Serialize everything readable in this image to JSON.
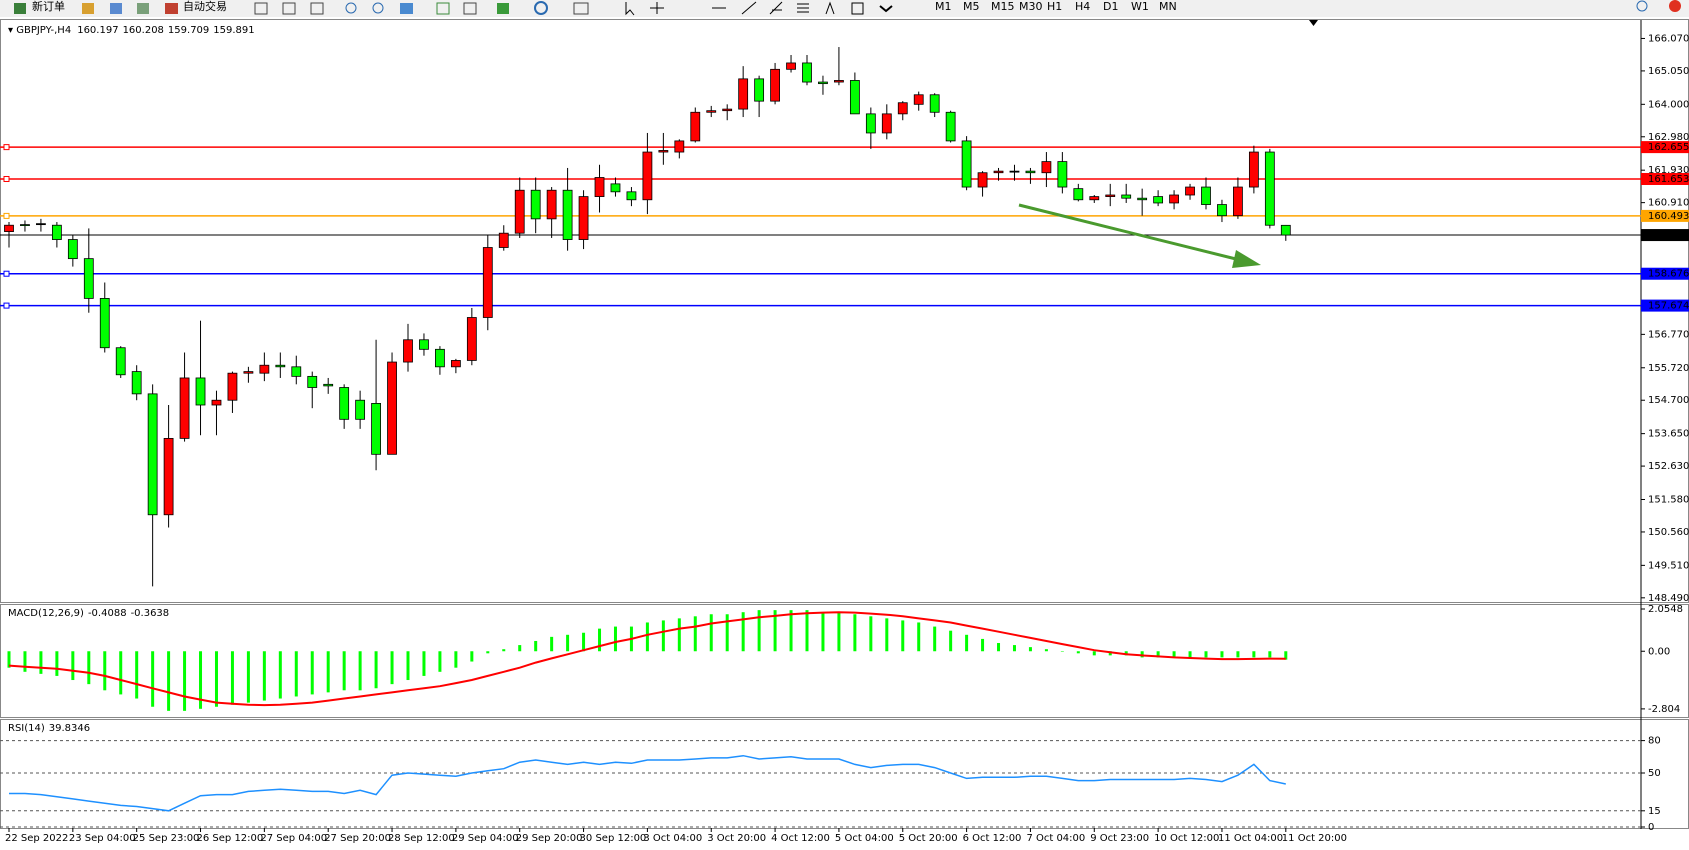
{
  "toolbar": {
    "new_order": "新订单",
    "auto_trading": "自动交易",
    "timeframes": [
      "M1",
      "M5",
      "M15",
      "M30",
      "H1",
      "H4",
      "D1",
      "W1",
      "MN"
    ]
  },
  "chart_data": [
    {
      "type": "candlestick",
      "symbol": "GBPJPY-,H4",
      "up_color": "#ff0000",
      "down_color": "#00ff00",
      "categories": [
        "22 Sep 2022",
        null,
        null,
        null,
        "23 Sep 04:00",
        null,
        null,
        null,
        "25 Sep 23:00",
        null,
        null,
        null,
        "26 Sep 12:00",
        null,
        null,
        null,
        "27 Sep 04:00",
        null,
        null,
        null,
        "27 Sep 20:00",
        null,
        null,
        null,
        "28 Sep 12:00",
        null,
        null,
        null,
        "29 Sep 04:00",
        null,
        null,
        null,
        "29 Sep 20:00",
        null,
        null,
        null,
        "30 Sep 12:00",
        null,
        null,
        null,
        "3 Oct 04:00",
        null,
        null,
        null,
        "3 Oct 20:00",
        null,
        null,
        null,
        "4 Oct 12:00",
        null,
        null,
        null,
        "5 Oct 04:00",
        null,
        null,
        null,
        "5 Oct 20:00",
        null,
        null,
        null,
        "6 Oct 12:00",
        null,
        null,
        null,
        "7 Oct 04:00",
        null,
        null,
        null,
        "9 Oct 23:00",
        null,
        null,
        null,
        "10 Oct 12:00",
        null,
        null,
        null,
        "11 Oct 04:00",
        null,
        null,
        null,
        "11 Oct 20:00"
      ],
      "open": [
        160.0,
        160.22,
        160.25,
        160.2,
        159.75,
        159.15,
        157.9,
        156.35,
        155.6,
        154.9,
        151.1,
        153.5,
        155.4,
        154.55,
        154.7,
        155.55,
        155.55,
        155.8,
        155.75,
        155.45,
        155.2,
        155.1,
        154.7,
        154.6,
        153.0,
        155.9,
        156.6,
        156.3,
        155.75,
        155.95,
        157.3,
        159.5,
        159.95,
        161.3,
        160.4,
        161.3,
        159.75,
        161.1,
        161.5,
        161.25,
        161.0,
        162.5,
        162.5,
        162.85,
        163.75,
        163.8,
        163.85,
        164.8,
        164.1,
        165.1,
        165.3,
        164.7,
        164.7,
        164.75,
        163.7,
        163.1,
        163.7,
        164.0,
        164.3,
        163.75,
        162.85,
        161.4,
        161.85,
        161.9,
        161.9,
        161.85,
        162.2,
        161.35,
        161.0,
        161.1,
        161.15,
        161.05,
        161.1,
        160.9,
        161.15,
        161.4,
        160.85,
        160.5,
        161.4,
        162.5,
        160.197
      ],
      "high": [
        160.3,
        160.35,
        160.4,
        160.3,
        159.9,
        160.1,
        158.4,
        156.4,
        155.8,
        155.2,
        154.55,
        156.2,
        157.2,
        155.0,
        155.6,
        155.75,
        156.2,
        156.2,
        156.1,
        155.6,
        155.4,
        155.2,
        155.0,
        156.6,
        156.2,
        157.1,
        156.8,
        156.4,
        156.0,
        157.6,
        159.9,
        160.2,
        161.7,
        161.7,
        161.4,
        162.0,
        161.3,
        162.1,
        161.7,
        161.4,
        163.1,
        163.1,
        162.9,
        163.9,
        163.95,
        164.0,
        165.2,
        164.9,
        165.3,
        165.55,
        165.55,
        164.9,
        165.8,
        165.0,
        163.9,
        164.0,
        164.1,
        164.4,
        164.35,
        163.8,
        163.0,
        161.9,
        162.0,
        162.1,
        162.0,
        162.5,
        162.5,
        161.5,
        161.15,
        161.5,
        161.5,
        161.35,
        161.3,
        161.3,
        161.5,
        161.7,
        161.0,
        161.7,
        162.7,
        162.6,
        160.208
      ],
      "low": [
        159.5,
        160.0,
        160.0,
        159.5,
        158.9,
        157.45,
        156.2,
        155.4,
        154.7,
        148.85,
        150.7,
        153.4,
        153.6,
        153.6,
        154.3,
        155.25,
        155.3,
        155.4,
        155.2,
        154.45,
        154.9,
        153.8,
        153.8,
        152.5,
        153.0,
        155.6,
        156.1,
        155.5,
        155.55,
        155.8,
        156.9,
        159.4,
        159.8,
        159.95,
        159.8,
        159.4,
        159.45,
        160.6,
        161.1,
        160.8,
        160.55,
        162.1,
        162.3,
        162.8,
        163.6,
        163.5,
        163.6,
        163.6,
        164.0,
        165.0,
        164.6,
        164.3,
        164.6,
        163.7,
        162.6,
        162.9,
        163.5,
        163.8,
        163.6,
        162.8,
        161.3,
        161.1,
        161.6,
        161.6,
        161.5,
        161.4,
        161.2,
        160.95,
        160.9,
        160.8,
        160.9,
        160.5,
        160.8,
        160.7,
        161.0,
        160.7,
        160.3,
        160.4,
        161.2,
        160.1,
        159.709
      ],
      "close": [
        160.2,
        160.2,
        160.25,
        159.75,
        159.15,
        157.9,
        156.35,
        155.5,
        154.9,
        151.1,
        153.5,
        155.4,
        154.55,
        154.7,
        155.55,
        155.6,
        155.8,
        155.75,
        155.45,
        155.1,
        155.15,
        154.1,
        154.1,
        153.0,
        155.9,
        156.6,
        156.3,
        155.75,
        155.95,
        157.3,
        159.5,
        159.95,
        161.3,
        160.4,
        161.3,
        159.75,
        161.1,
        161.7,
        161.25,
        161.0,
        162.5,
        162.55,
        162.85,
        163.75,
        163.8,
        163.85,
        164.8,
        164.1,
        165.1,
        165.3,
        164.7,
        164.65,
        164.75,
        163.7,
        163.1,
        163.7,
        164.05,
        164.3,
        163.75,
        162.85,
        161.4,
        161.85,
        161.9,
        161.9,
        161.85,
        162.2,
        161.4,
        161.0,
        161.1,
        161.15,
        161.05,
        161.0,
        160.9,
        161.15,
        161.4,
        160.85,
        160.5,
        161.4,
        162.5,
        160.2,
        159.891
      ],
      "ylim": [
        148.39,
        166.65
      ],
      "yticks": [
        {
          "value": 166.07,
          "label": "166.070"
        },
        {
          "value": 165.05,
          "label": "165.050"
        },
        {
          "value": 164.0,
          "label": "164.000"
        },
        {
          "value": 162.98,
          "label": "162.980"
        },
        {
          "value": 161.93,
          "label": "161.930"
        },
        {
          "value": 160.91,
          "label": "160.910"
        },
        {
          "value": 156.77,
          "label": "156.770"
        },
        {
          "value": 155.72,
          "label": "155.720"
        },
        {
          "value": 154.7,
          "label": "154.700"
        },
        {
          "value": 153.65,
          "label": "153.650"
        },
        {
          "value": 152.63,
          "label": "152.630"
        },
        {
          "value": 151.58,
          "label": "151.580"
        },
        {
          "value": 150.56,
          "label": "150.560"
        },
        {
          "value": 149.51,
          "label": "149.510"
        },
        {
          "value": 148.49,
          "label": "148.490"
        }
      ],
      "levels": [
        {
          "value": 162.655,
          "color": "#ff0000"
        },
        {
          "value": 161.653,
          "color": "#ff0000"
        },
        {
          "value": 160.493,
          "color": "#ffa500"
        },
        {
          "value": 158.676,
          "color": "#0000ff"
        },
        {
          "value": 157.674,
          "color": "#0000ff"
        }
      ]
    },
    {
      "type": "bar",
      "title": "MACD(12,26,9)",
      "color": "#00ff00",
      "values": [
        -0.8,
        -1.0,
        -1.1,
        -1.2,
        -1.4,
        -1.6,
        -1.9,
        -2.1,
        -2.3,
        -2.7,
        -2.9,
        -2.9,
        -2.8,
        -2.7,
        -2.6,
        -2.5,
        -2.4,
        -2.3,
        -2.2,
        -2.1,
        -2.0,
        -1.9,
        -1.9,
        -1.8,
        -1.6,
        -1.4,
        -1.2,
        -1.0,
        -0.8,
        -0.5,
        -0.1,
        0.1,
        0.3,
        0.5,
        0.7,
        0.8,
        0.9,
        1.1,
        1.2,
        1.2,
        1.4,
        1.5,
        1.6,
        1.7,
        1.8,
        1.8,
        1.9,
        2.0,
        2.0,
        2.0,
        2.0,
        1.9,
        1.9,
        1.8,
        1.7,
        1.6,
        1.5,
        1.4,
        1.2,
        1.0,
        0.8,
        0.6,
        0.4,
        0.3,
        0.2,
        0.1,
        0.0,
        -0.1,
        -0.2,
        -0.2,
        -0.2,
        -0.3,
        -0.3,
        -0.3,
        -0.3,
        -0.3,
        -0.3,
        -0.3,
        -0.3,
        -0.3,
        -0.4088
      ],
      "line": {
        "color": "#ff0000",
        "values": [
          -0.7,
          -0.75,
          -0.8,
          -0.85,
          -0.95,
          -1.05,
          -1.2,
          -1.4,
          -1.6,
          -1.8,
          -2.0,
          -2.2,
          -2.35,
          -2.5,
          -2.55,
          -2.6,
          -2.62,
          -2.6,
          -2.55,
          -2.5,
          -2.4,
          -2.3,
          -2.2,
          -2.1,
          -2.0,
          -1.9,
          -1.8,
          -1.7,
          -1.55,
          -1.4,
          -1.2,
          -1.0,
          -0.8,
          -0.55,
          -0.35,
          -0.15,
          0.05,
          0.25,
          0.45,
          0.6,
          0.8,
          0.95,
          1.1,
          1.2,
          1.35,
          1.45,
          1.55,
          1.65,
          1.72,
          1.8,
          1.85,
          1.88,
          1.9,
          1.88,
          1.83,
          1.78,
          1.7,
          1.6,
          1.5,
          1.4,
          1.25,
          1.1,
          0.95,
          0.8,
          0.65,
          0.5,
          0.35,
          0.2,
          0.05,
          -0.05,
          -0.15,
          -0.2,
          -0.25,
          -0.3,
          -0.33,
          -0.36,
          -0.38,
          -0.38,
          -0.37,
          -0.36,
          -0.3638
        ]
      },
      "ylim": [
        -3.15,
        2.25
      ],
      "yticks": [
        2.0548,
        {
          "value": 0,
          "label": "0.00"
        },
        -2.804
      ]
    },
    {
      "type": "line",
      "title": "RSI(14)",
      "color": "#1e90ff",
      "grid": true,
      "values": [
        31,
        31,
        30,
        28,
        26,
        24,
        22,
        20,
        19,
        17,
        15,
        22,
        29,
        30,
        30,
        33,
        34,
        35,
        34,
        33,
        33,
        31,
        34,
        30,
        48,
        50,
        49,
        48,
        47,
        50,
        52,
        54,
        60,
        62,
        60,
        58,
        60,
        58,
        60,
        59,
        62,
        62,
        62,
        63,
        64,
        64,
        66,
        63,
        64,
        65,
        63,
        63,
        63,
        58,
        55,
        57,
        58,
        58,
        55,
        50,
        45,
        46,
        46,
        46,
        47,
        47,
        45,
        43,
        43,
        44,
        44,
        44,
        44,
        44,
        45,
        44,
        42,
        48,
        58,
        43,
        39.8346
      ],
      "ylim": [
        0,
        100
      ],
      "yticks": [
        80,
        50,
        15,
        0
      ]
    }
  ]
}
